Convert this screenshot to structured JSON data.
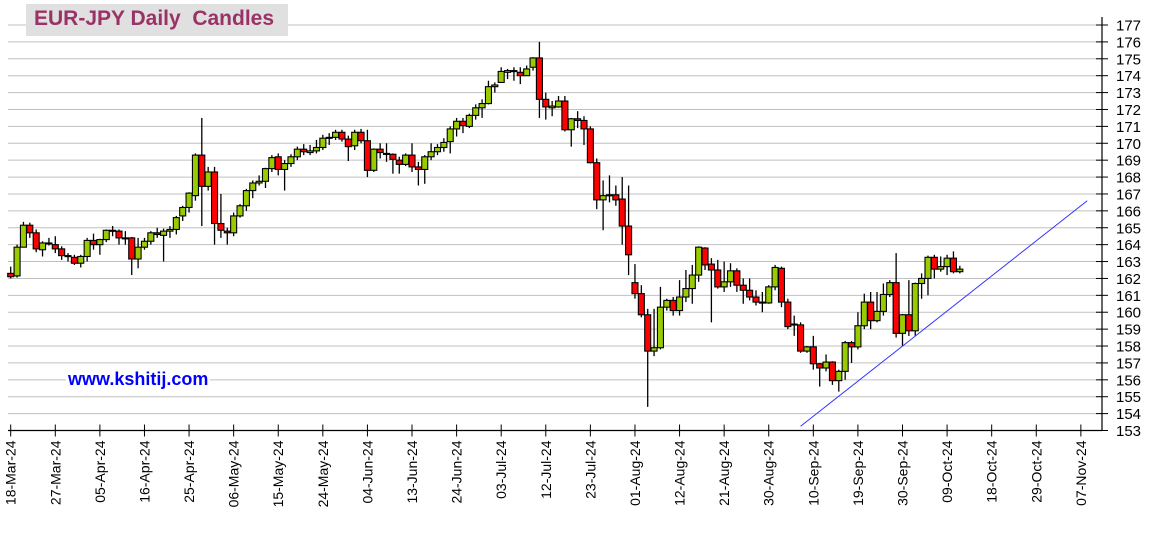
{
  "chart_data": {
    "type": "candlestick",
    "title": "EUR-JPY Daily  Candles",
    "watermark": "www.kshitij.com",
    "ylim": [
      153,
      177
    ],
    "y_tick_step": 1,
    "y_axis_side": "right",
    "grid": true,
    "colors": {
      "up": "#99cc00",
      "down": "#ff0000",
      "outline": "#000000",
      "grid": "#c0c0c0",
      "trendline": "#3333ff",
      "title": "#993366",
      "watermark": "#0000ff"
    },
    "x_tick_labels": [
      "18-Mar-24",
      "27-Mar-24",
      "05-Apr-24",
      "16-Apr-24",
      "25-Apr-24",
      "06-May-24",
      "15-May-24",
      "24-May-24",
      "04-Jun-24",
      "13-Jun-24",
      "24-Jun-24",
      "03-Jul-24",
      "12-Jul-24",
      "23-Jul-24",
      "01-Aug-24",
      "12-Aug-24",
      "21-Aug-24",
      "30-Aug-24",
      "10-Sep-24",
      "19-Sep-24",
      "30-Sep-24",
      "09-Oct-24",
      "18-Oct-24",
      "29-Oct-24",
      "07-Nov-24"
    ],
    "candle_fields": [
      "date",
      "open",
      "high",
      "low",
      "close"
    ],
    "candles": [
      [
        "2024-03-18",
        162.3,
        162.7,
        162.0,
        162.1
      ],
      [
        "2024-03-19",
        162.15,
        164.0,
        162.05,
        163.85
      ],
      [
        "2024-03-20",
        163.85,
        165.35,
        163.85,
        165.15
      ],
      [
        "2024-03-21",
        165.15,
        165.3,
        164.4,
        164.7
      ],
      [
        "2024-03-22",
        164.7,
        164.9,
        163.55,
        163.75
      ],
      [
        "2024-03-25",
        163.7,
        164.2,
        163.3,
        164.1
      ],
      [
        "2024-03-26",
        164.1,
        164.4,
        163.95,
        164.05
      ],
      [
        "2024-03-27",
        164.0,
        164.5,
        163.5,
        163.75
      ],
      [
        "2024-03-28",
        163.75,
        163.9,
        163.1,
        163.35
      ],
      [
        "2024-03-29",
        163.35,
        163.5,
        163.0,
        163.3
      ],
      [
        "2024-04-01",
        163.25,
        163.4,
        162.8,
        162.9
      ],
      [
        "2024-04-02",
        162.9,
        163.4,
        162.65,
        163.3
      ],
      [
        "2024-04-03",
        163.3,
        164.4,
        163.0,
        164.25
      ],
      [
        "2024-04-04",
        164.25,
        164.65,
        163.7,
        164.0
      ],
      [
        "2024-04-05",
        164.0,
        164.35,
        163.4,
        164.3
      ],
      [
        "2024-04-08",
        164.3,
        164.9,
        164.15,
        164.85
      ],
      [
        "2024-04-09",
        164.85,
        165.1,
        164.5,
        164.8
      ],
      [
        "2024-04-10",
        164.8,
        164.9,
        164.0,
        164.4
      ],
      [
        "2024-04-11",
        164.4,
        164.8,
        164.0,
        164.35
      ],
      [
        "2024-04-12",
        164.4,
        164.45,
        162.2,
        163.15
      ],
      [
        "2024-04-15",
        163.15,
        164.4,
        162.6,
        163.85
      ],
      [
        "2024-04-16",
        163.85,
        164.4,
        163.7,
        164.2
      ],
      [
        "2024-04-17",
        164.2,
        164.8,
        164.0,
        164.7
      ],
      [
        "2024-04-18",
        164.7,
        165.0,
        164.4,
        164.6
      ],
      [
        "2024-04-19",
        164.55,
        164.95,
        163.0,
        164.8
      ],
      [
        "2024-04-22",
        164.8,
        165.1,
        164.4,
        164.9
      ],
      [
        "2024-04-23",
        164.9,
        165.7,
        164.6,
        165.6
      ],
      [
        "2024-04-24",
        165.7,
        166.3,
        165.4,
        166.2
      ],
      [
        "2024-04-25",
        166.2,
        167.1,
        165.9,
        167.05
      ],
      [
        "2024-04-26",
        166.9,
        169.4,
        166.6,
        169.3
      ],
      [
        "2024-04-29",
        169.3,
        171.5,
        165.1,
        167.45
      ],
      [
        "2024-04-30",
        167.45,
        168.6,
        167.2,
        168.3
      ],
      [
        "2024-05-01",
        168.3,
        168.6,
        164.0,
        165.25
      ],
      [
        "2024-05-02",
        165.25,
        167.0,
        164.4,
        164.85
      ],
      [
        "2024-05-03",
        164.8,
        165.0,
        164.0,
        164.7
      ],
      [
        "2024-05-06",
        164.7,
        165.9,
        164.5,
        165.7
      ],
      [
        "2024-05-07",
        165.7,
        166.4,
        165.6,
        166.3
      ],
      [
        "2024-05-08",
        166.3,
        167.3,
        166.0,
        167.2
      ],
      [
        "2024-05-09",
        167.2,
        167.8,
        166.75,
        167.65
      ],
      [
        "2024-05-10",
        167.65,
        168.1,
        167.5,
        167.75
      ],
      [
        "2024-05-13",
        167.75,
        168.55,
        167.35,
        168.5
      ],
      [
        "2024-05-14",
        168.5,
        169.3,
        168.3,
        169.15
      ],
      [
        "2024-05-15",
        169.2,
        169.4,
        168.1,
        168.45
      ],
      [
        "2024-05-16",
        168.45,
        169.0,
        167.2,
        168.8
      ],
      [
        "2024-05-17",
        168.8,
        169.35,
        168.6,
        169.2
      ],
      [
        "2024-05-20",
        169.2,
        169.8,
        169.0,
        169.65
      ],
      [
        "2024-05-21",
        169.65,
        169.95,
        169.3,
        169.5
      ],
      [
        "2024-05-22",
        169.45,
        169.9,
        169.3,
        169.55
      ],
      [
        "2024-05-23",
        169.55,
        170.2,
        169.4,
        169.75
      ],
      [
        "2024-05-24",
        169.75,
        170.5,
        169.6,
        170.3
      ],
      [
        "2024-05-27",
        170.3,
        170.6,
        169.9,
        170.35
      ],
      [
        "2024-05-28",
        170.35,
        170.8,
        170.2,
        170.65
      ],
      [
        "2024-05-29",
        170.65,
        170.8,
        170.1,
        170.25
      ],
      [
        "2024-05-30",
        170.25,
        170.45,
        168.95,
        169.8
      ],
      [
        "2024-05-31",
        169.85,
        170.8,
        169.6,
        170.65
      ],
      [
        "2024-06-03",
        170.65,
        170.85,
        170.0,
        170.15
      ],
      [
        "2024-06-04",
        170.15,
        170.8,
        168.0,
        168.4
      ],
      [
        "2024-06-05",
        168.4,
        169.7,
        168.3,
        169.65
      ],
      [
        "2024-06-06",
        169.65,
        170.0,
        169.1,
        169.45
      ],
      [
        "2024-06-07",
        169.4,
        170.0,
        168.9,
        169.35
      ],
      [
        "2024-06-10",
        169.35,
        169.4,
        168.2,
        169.05
      ],
      [
        "2024-06-11",
        169.0,
        169.2,
        168.2,
        168.75
      ],
      [
        "2024-06-12",
        168.75,
        169.4,
        168.65,
        169.3
      ],
      [
        "2024-06-13",
        169.3,
        170.0,
        168.3,
        168.6
      ],
      [
        "2024-06-14",
        168.6,
        168.9,
        167.5,
        168.45
      ],
      [
        "2024-06-17",
        168.45,
        169.3,
        167.6,
        169.2
      ],
      [
        "2024-06-18",
        169.2,
        170.0,
        169.0,
        169.5
      ],
      [
        "2024-06-19",
        169.5,
        169.95,
        169.3,
        169.75
      ],
      [
        "2024-06-20",
        169.75,
        170.3,
        169.5,
        170.05
      ],
      [
        "2024-06-21",
        170.1,
        171.0,
        169.4,
        170.85
      ],
      [
        "2024-06-24",
        170.85,
        171.5,
        170.4,
        171.3
      ],
      [
        "2024-06-25",
        171.3,
        171.5,
        170.6,
        171.05
      ],
      [
        "2024-06-26",
        171.0,
        171.75,
        170.9,
        171.65
      ],
      [
        "2024-06-27",
        171.65,
        172.3,
        171.4,
        172.1
      ],
      [
        "2024-06-28",
        172.1,
        172.6,
        171.5,
        172.35
      ],
      [
        "2024-07-01",
        172.35,
        173.7,
        172.3,
        173.35
      ],
      [
        "2024-07-02",
        173.35,
        173.6,
        173.0,
        173.45
      ],
      [
        "2024-07-03",
        173.6,
        174.5,
        173.6,
        174.25
      ],
      [
        "2024-07-04",
        174.2,
        174.4,
        173.8,
        174.3
      ],
      [
        "2024-07-05",
        174.3,
        174.5,
        173.7,
        174.25
      ],
      [
        "2024-07-08",
        174.2,
        174.5,
        173.5,
        174.0
      ],
      [
        "2024-07-09",
        174.0,
        174.6,
        174.0,
        174.4
      ],
      [
        "2024-07-10",
        174.5,
        175.1,
        174.3,
        175.05
      ],
      [
        "2024-07-11",
        175.05,
        176.0,
        171.5,
        172.6
      ],
      [
        "2024-07-12",
        172.6,
        173.0,
        171.4,
        172.15
      ],
      [
        "2024-07-15",
        172.1,
        172.5,
        171.6,
        172.2
      ],
      [
        "2024-07-16",
        172.15,
        172.8,
        172.1,
        172.5
      ],
      [
        "2024-07-17",
        172.5,
        172.8,
        170.7,
        170.8
      ],
      [
        "2024-07-18",
        170.8,
        171.5,
        169.8,
        171.45
      ],
      [
        "2024-07-19",
        171.45,
        171.9,
        170.9,
        171.35
      ],
      [
        "2024-07-22",
        171.35,
        171.6,
        169.9,
        170.85
      ],
      [
        "2024-07-23",
        170.85,
        171.0,
        168.8,
        168.85
      ],
      [
        "2024-07-24",
        168.85,
        169.1,
        166.1,
        166.65
      ],
      [
        "2024-07-25",
        166.65,
        167.8,
        164.85,
        166.9
      ],
      [
        "2024-07-26",
        166.9,
        168.1,
        166.5,
        166.95
      ],
      [
        "2024-07-29",
        166.95,
        167.5,
        166.3,
        166.65
      ],
      [
        "2024-07-30",
        166.7,
        168.0,
        164.0,
        165.1
      ],
      [
        "2024-07-31",
        165.1,
        167.5,
        162.2,
        163.4
      ],
      [
        "2024-08-01",
        161.75,
        162.85,
        160.8,
        161.1
      ],
      [
        "2024-08-02",
        161.1,
        161.6,
        159.7,
        159.85
      ],
      [
        "2024-08-05",
        159.85,
        160.2,
        154.4,
        157.7
      ],
      [
        "2024-08-06",
        157.7,
        160.2,
        157.4,
        157.9
      ],
      [
        "2024-08-07",
        157.9,
        161.5,
        157.8,
        160.3
      ],
      [
        "2024-08-08",
        160.3,
        160.8,
        160.1,
        160.7
      ],
      [
        "2024-08-09",
        160.7,
        160.9,
        159.8,
        160.1
      ],
      [
        "2024-08-12",
        160.1,
        161.9,
        159.8,
        160.9
      ],
      [
        "2024-08-13",
        160.9,
        162.5,
        160.6,
        161.4
      ],
      [
        "2024-08-14",
        161.4,
        162.8,
        160.5,
        162.2
      ],
      [
        "2024-08-15",
        162.2,
        163.9,
        161.8,
        163.85
      ],
      [
        "2024-08-16",
        163.8,
        163.85,
        162.5,
        162.8
      ],
      [
        "2024-08-19",
        162.85,
        163.2,
        159.4,
        162.5
      ],
      [
        "2024-08-20",
        162.5,
        163.1,
        161.4,
        161.5
      ],
      [
        "2024-08-21",
        161.5,
        163.0,
        161.2,
        161.8
      ],
      [
        "2024-08-22",
        161.8,
        162.9,
        161.5,
        162.45
      ],
      [
        "2024-08-23",
        162.45,
        162.6,
        161.2,
        161.6
      ],
      [
        "2024-08-26",
        161.6,
        162.0,
        160.5,
        161.3
      ],
      [
        "2024-08-27",
        161.3,
        162.0,
        160.7,
        160.9
      ],
      [
        "2024-08-28",
        160.9,
        161.3,
        160.4,
        160.6
      ],
      [
        "2024-08-29",
        160.6,
        161.2,
        160.0,
        160.55
      ],
      [
        "2024-08-30",
        160.55,
        161.6,
        160.5,
        161.5
      ],
      [
        "2024-09-02",
        161.5,
        162.8,
        161.3,
        162.65
      ],
      [
        "2024-09-03",
        162.6,
        162.7,
        160.3,
        160.6
      ],
      [
        "2024-09-04",
        160.6,
        160.8,
        159.0,
        159.15
      ],
      [
        "2024-09-05",
        159.3,
        159.8,
        158.6,
        159.25
      ],
      [
        "2024-09-06",
        159.25,
        159.4,
        157.6,
        157.7
      ],
      [
        "2024-09-09",
        157.7,
        158.0,
        157.6,
        157.95
      ],
      [
        "2024-09-10",
        157.95,
        158.6,
        156.6,
        156.95
      ],
      [
        "2024-09-11",
        156.95,
        157.0,
        155.6,
        156.7
      ],
      [
        "2024-09-12",
        156.7,
        157.5,
        156.5,
        157.05
      ],
      [
        "2024-09-13",
        157.05,
        157.1,
        155.7,
        155.95
      ],
      [
        "2024-09-16",
        155.95,
        156.6,
        155.3,
        156.5
      ],
      [
        "2024-09-17",
        156.5,
        158.3,
        156.0,
        158.2
      ],
      [
        "2024-09-18",
        158.2,
        158.3,
        157.0,
        157.95
      ],
      [
        "2024-09-19",
        157.95,
        160.0,
        157.8,
        159.2
      ],
      [
        "2024-09-20",
        159.2,
        161.1,
        159.0,
        160.6
      ],
      [
        "2024-09-23",
        160.6,
        161.2,
        159.0,
        159.5
      ],
      [
        "2024-09-24",
        159.5,
        161.2,
        159.4,
        160.05
      ],
      [
        "2024-09-25",
        160.05,
        161.7,
        159.8,
        161.05
      ],
      [
        "2024-09-26",
        161.05,
        161.9,
        160.9,
        161.75
      ],
      [
        "2024-09-27",
        161.75,
        163.5,
        158.5,
        158.75
      ],
      [
        "2024-09-30",
        158.75,
        159.9,
        158.0,
        159.85
      ],
      [
        "2024-10-01",
        159.85,
        161.9,
        158.6,
        158.9
      ],
      [
        "2024-10-02",
        158.9,
        161.75,
        158.6,
        161.7
      ],
      [
        "2024-10-03",
        161.7,
        162.3,
        160.8,
        162.0
      ],
      [
        "2024-10-04",
        162.0,
        163.35,
        161.0,
        163.25
      ],
      [
        "2024-10-07",
        163.25,
        163.4,
        162.0,
        162.55
      ],
      [
        "2024-10-08",
        162.55,
        163.3,
        162.4,
        162.7
      ],
      [
        "2024-10-09",
        162.7,
        163.4,
        162.2,
        163.2
      ],
      [
        "2024-10-10",
        163.2,
        163.6,
        162.3,
        162.4
      ],
      [
        "2024-10-11",
        162.4,
        162.75,
        162.3,
        162.55
      ]
    ],
    "trendline": {
      "start": {
        "date": "2024-09-06",
        "value": 153.25
      },
      "end": {
        "date": "2024-11-08",
        "value": 166.6
      }
    }
  }
}
